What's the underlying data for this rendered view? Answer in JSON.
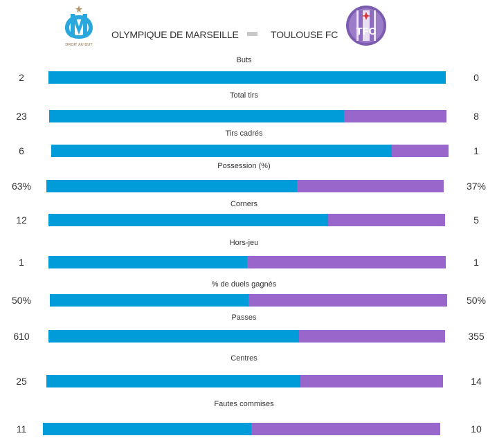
{
  "header": {
    "home_team": "OLYMPIQUE DE MARSEILLE",
    "away_team": "TOULOUSE FC",
    "home_logo_text": "DROIT AU BUT",
    "away_logo_text": "TFC"
  },
  "colors": {
    "home": "#009cd9",
    "away": "#9966cc"
  },
  "stats": [
    {
      "label": "Buts",
      "home": "2",
      "away": "0",
      "home_val": 2,
      "away_val": 0
    },
    {
      "label": "Total tirs",
      "home": "23",
      "away": "8",
      "home_val": 23,
      "away_val": 8
    },
    {
      "label": "Tirs cadrés",
      "home": "6",
      "away": "1",
      "home_val": 6,
      "away_val": 1
    },
    {
      "label": "Possession (%)",
      "home": "63%",
      "away": "37%",
      "home_val": 63,
      "away_val": 37
    },
    {
      "label": "Corners",
      "home": "12",
      "away": "5",
      "home_val": 12,
      "away_val": 5
    },
    {
      "label": "Hors-jeu",
      "home": "1",
      "away": "1",
      "home_val": 1,
      "away_val": 1
    },
    {
      "label": "% de duels gagnés",
      "home": "50%",
      "away": "50%",
      "home_val": 50,
      "away_val": 50
    },
    {
      "label": "Passes",
      "home": "610",
      "away": "355",
      "home_val": 610,
      "away_val": 355
    },
    {
      "label": "Centres",
      "home": "25",
      "away": "14",
      "home_val": 25,
      "away_val": 14
    },
    {
      "label": "Fautes commises",
      "home": "11",
      "away": "10",
      "home_val": 11,
      "away_val": 10
    }
  ]
}
